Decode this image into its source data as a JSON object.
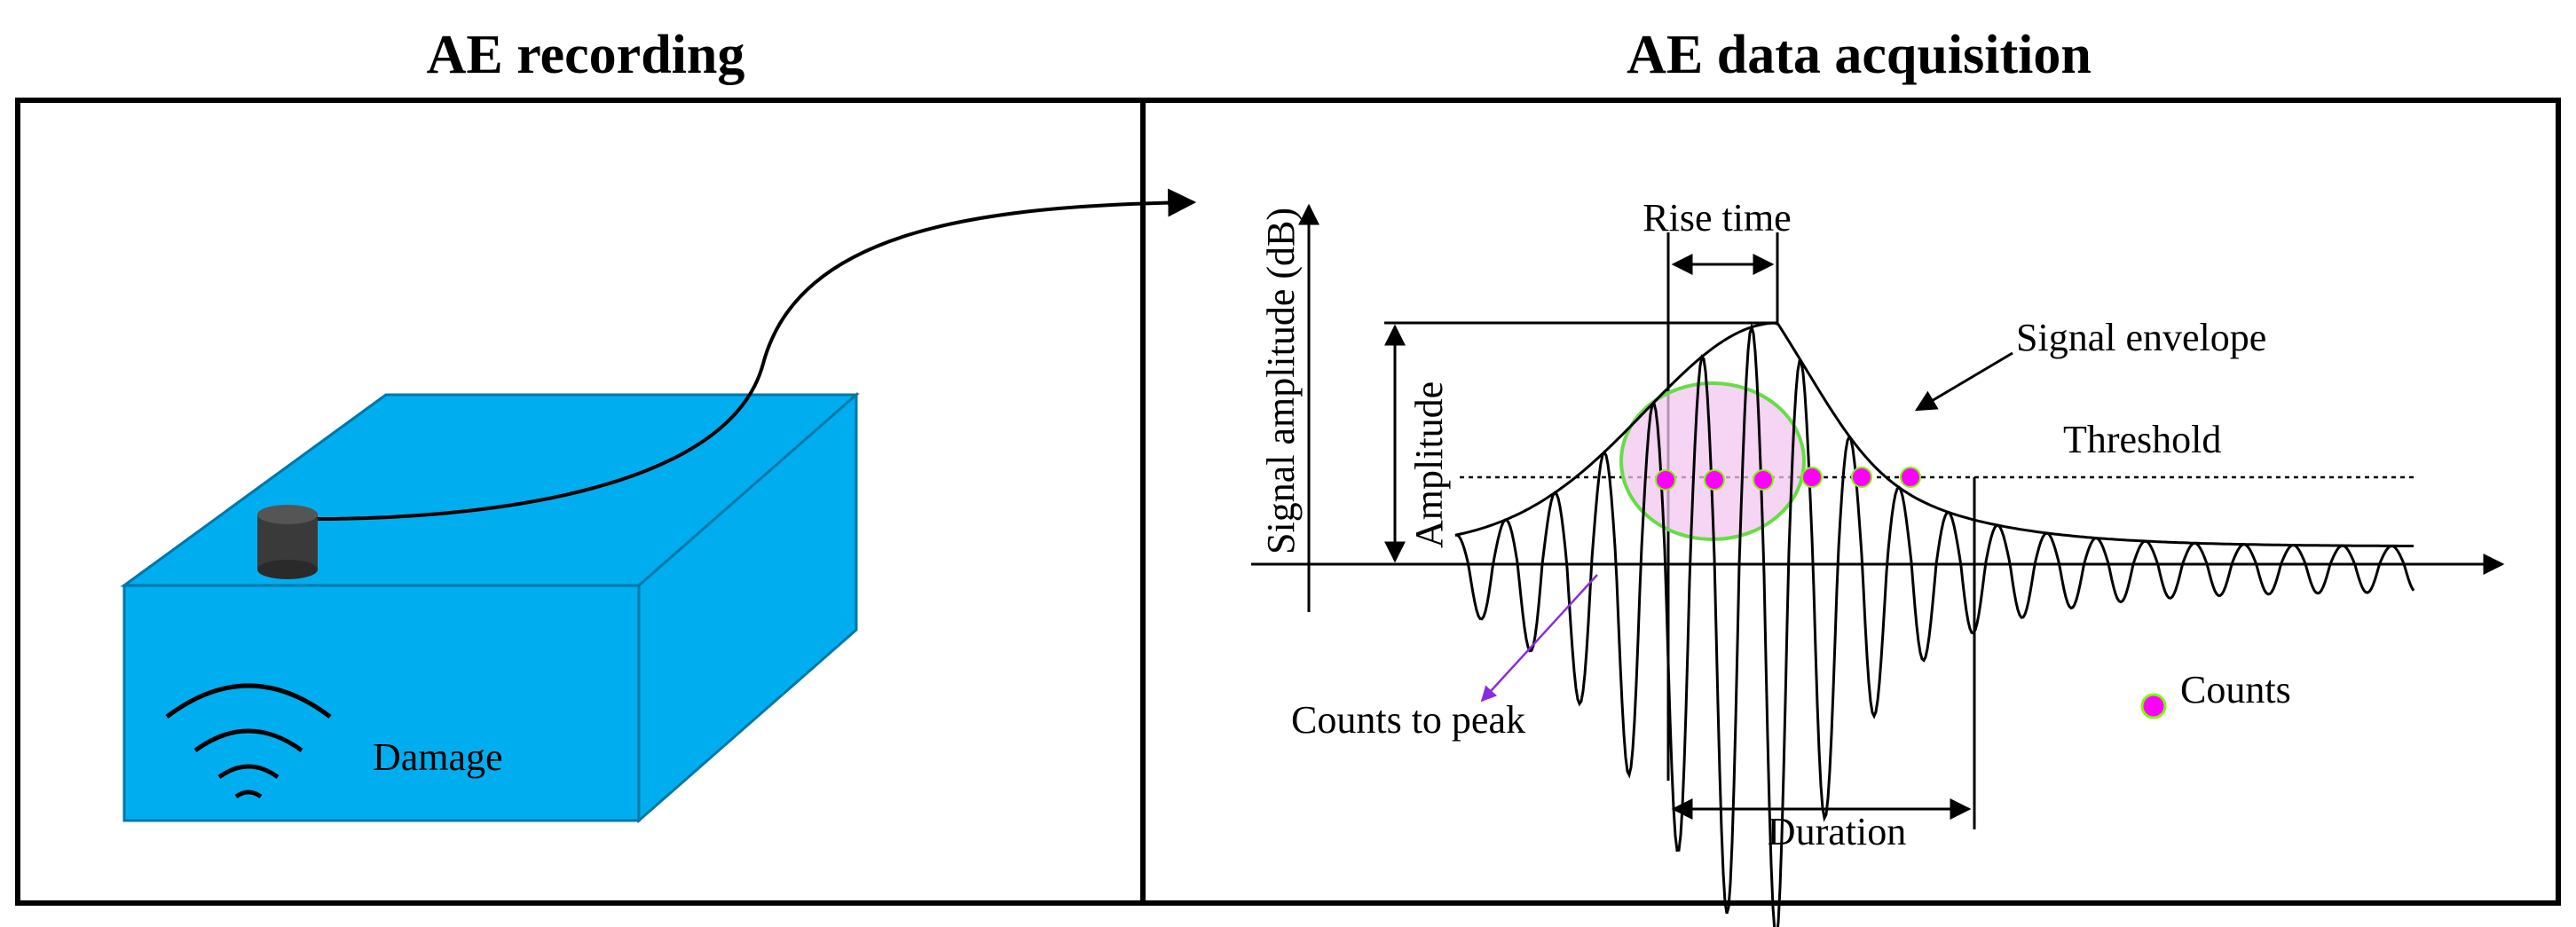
{
  "titles": {
    "left": "AE recording",
    "right": "AE data acquisition"
  },
  "specimen": {
    "damage_label": "Damage",
    "box_color": "#00AEEF",
    "sensor_color": "#3a3a3a"
  },
  "signal": {
    "y_axis_label": "Signal amplitude (dB)",
    "amplitude_label": "Amplitude",
    "rise_time_label": "Rise time",
    "envelope_label": "Signal envelope",
    "threshold_label": "Threshold",
    "duration_label": "Duration",
    "counts_to_peak_label": "Counts to peak",
    "counts_label": "Counts",
    "count_marker_color": "#FF00FF",
    "count_marker_border": "#7CFC00",
    "highlight_fill": "#F3C6F0",
    "highlight_border": "#66DD44",
    "pointer_color": "#8A2BE2"
  }
}
